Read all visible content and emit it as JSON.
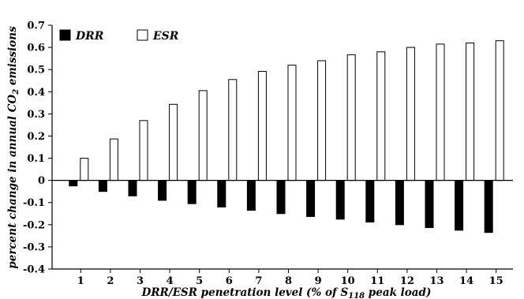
{
  "chart_data": {
    "type": "bar",
    "categories": [
      "1",
      "2",
      "3",
      "4",
      "5",
      "6",
      "7",
      "8",
      "9",
      "10",
      "11",
      "12",
      "13",
      "14",
      "15"
    ],
    "series": [
      {
        "name": "DRR",
        "color": "#000000",
        "values": [
          -0.025,
          -0.05,
          -0.07,
          -0.09,
          -0.105,
          -0.12,
          -0.135,
          -0.15,
          -0.163,
          -0.175,
          -0.188,
          -0.2,
          -0.213,
          -0.225,
          -0.235
        ]
      },
      {
        "name": "ESR",
        "color": "#ffffff",
        "values": [
          0.1,
          0.187,
          0.27,
          0.343,
          0.405,
          0.455,
          0.492,
          0.52,
          0.54,
          0.567,
          0.58,
          0.6,
          0.615,
          0.62,
          0.63
        ]
      }
    ],
    "ylim": [
      -0.4,
      0.7
    ],
    "yticks": [
      "-0.4",
      "-0.3",
      "-0.2",
      "-0.1",
      "0",
      "0.1",
      "0.2",
      "0.3",
      "0.4",
      "0.5",
      "0.6",
      "0.7"
    ],
    "xlabel": {
      "pre": "DRR/ESR penetration level (% of S",
      "sub": "118",
      "post": " peak load)"
    },
    "ylabel": {
      "pre": "percent change in annual CO",
      "sub": "2",
      "post": " emissions"
    },
    "legend_position": "top-left",
    "grid": false
  }
}
